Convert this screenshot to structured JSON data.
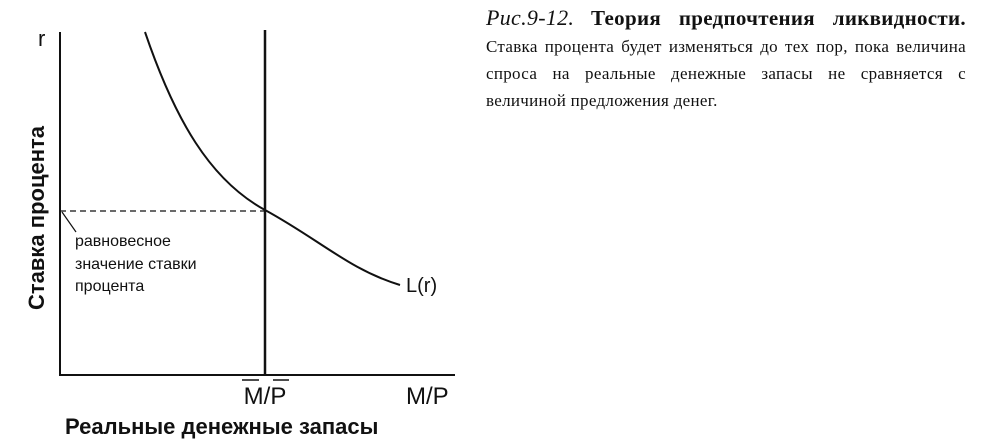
{
  "diagram": {
    "y_axis_symbol": "r",
    "y_axis_label": "Ставка процента",
    "x_axis_label": "Реальные денежные запасы",
    "x_axis_symbol": "M/P",
    "supply_label": "M/P",
    "curve_label": "L(r)",
    "annotation": [
      "равновесное",
      "значение ставки",
      "процента"
    ]
  },
  "caption": {
    "figure": "Рис.9-12.",
    "title": "Теория предпочтения ликвидности.",
    "text": "Ставка процента будет изменяться до тех пор, пока величина спроса на реальные денежные запасы не сравняется с величиной предложения денег."
  }
}
